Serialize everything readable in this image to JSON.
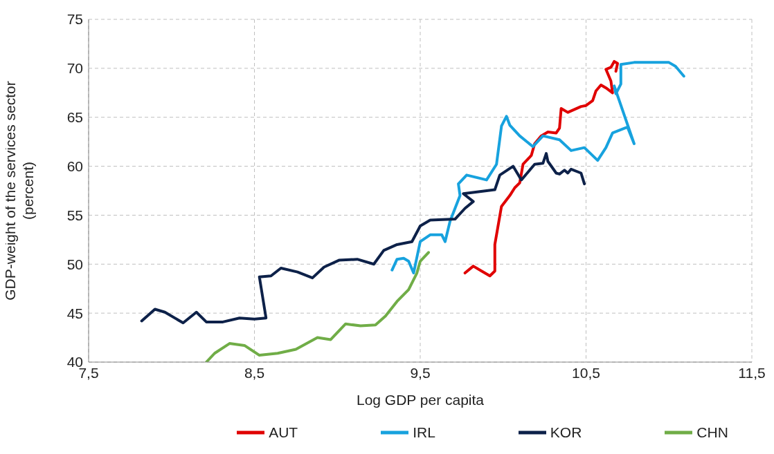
{
  "chart_data": {
    "type": "line",
    "xlabel": "Log GDP per capita",
    "ylabel": "GDP-weight of the services sector (percent)",
    "xlim": [
      7.5,
      11.5
    ],
    "xticks": [
      {
        "value": 7.5,
        "label": "7,5"
      },
      {
        "value": 8.5,
        "label": "8,5"
      },
      {
        "value": 9.5,
        "label": "9,5"
      },
      {
        "value": 10.5,
        "label": "10,5"
      },
      {
        "value": 11.5,
        "label": "11,5"
      }
    ],
    "ylim": [
      40,
      75
    ],
    "yticks": [
      40,
      45,
      50,
      55,
      60,
      65,
      70,
      75
    ],
    "grid": true,
    "legend": "bottom",
    "marker": "none",
    "line_style": "solid",
    "series": [
      {
        "name": "AUT",
        "color": "#e00000",
        "x": [
          9.77,
          9.82,
          9.87,
          9.92,
          9.95,
          9.95,
          9.99,
          10.04,
          10.07,
          10.1,
          10.12,
          10.17,
          10.19,
          10.23,
          10.27,
          10.32,
          10.34,
          10.35,
          10.39,
          10.47,
          10.5,
          10.54,
          10.56,
          10.59,
          10.62,
          10.66,
          10.65,
          10.62,
          10.65,
          10.67,
          10.69,
          10.68
        ],
        "values": [
          49.1,
          49.8,
          49.3,
          48.8,
          49.3,
          52.0,
          55.9,
          57.0,
          57.8,
          58.3,
          60.2,
          61.1,
          62.3,
          63.1,
          63.5,
          63.4,
          63.9,
          65.9,
          65.5,
          66.1,
          66.2,
          66.7,
          67.7,
          68.3,
          68.0,
          67.5,
          68.7,
          69.9,
          70.1,
          70.7,
          70.5,
          69.7
        ]
      },
      {
        "name": "IRL",
        "color": "#17a2de",
        "x": [
          9.33,
          9.36,
          9.4,
          9.43,
          9.46,
          9.5,
          9.56,
          9.63,
          9.65,
          9.68,
          9.71,
          9.74,
          9.73,
          9.78,
          9.9,
          9.96,
          9.99,
          10.02,
          10.04,
          10.1,
          10.18,
          10.24,
          10.34,
          10.41,
          10.49,
          10.57,
          10.62,
          10.66,
          10.75,
          10.79,
          10.67,
          10.68,
          10.71,
          10.71,
          10.79,
          11.0,
          11.04,
          11.09
        ],
        "values": [
          49.4,
          50.5,
          50.6,
          50.3,
          49.1,
          52.3,
          53.0,
          53.0,
          52.3,
          54.4,
          55.7,
          57.0,
          58.2,
          59.1,
          58.6,
          60.2,
          64.1,
          65.1,
          64.2,
          63.1,
          62.0,
          63.1,
          62.7,
          61.6,
          61.9,
          60.6,
          61.9,
          63.4,
          64.0,
          62.3,
          68.2,
          67.4,
          68.4,
          70.4,
          70.6,
          70.6,
          70.2,
          69.2
        ]
      },
      {
        "name": "KOR",
        "color": "#0d2149",
        "x": [
          7.82,
          7.9,
          7.96,
          8.07,
          8.15,
          8.21,
          8.31,
          8.41,
          8.5,
          8.57,
          8.53,
          8.6,
          8.66,
          8.76,
          8.85,
          8.92,
          9.01,
          9.12,
          9.22,
          9.28,
          9.36,
          9.45,
          9.5,
          9.56,
          9.71,
          9.77,
          9.82,
          9.76,
          9.95,
          9.98,
          10.06,
          10.11,
          10.19,
          10.24,
          10.26,
          10.27,
          10.32,
          10.34,
          10.37,
          10.39,
          10.41,
          10.47,
          10.49
        ],
        "values": [
          44.2,
          45.4,
          45.1,
          44.0,
          45.1,
          44.1,
          44.1,
          44.5,
          44.4,
          44.5,
          48.7,
          48.8,
          49.6,
          49.2,
          48.6,
          49.7,
          50.4,
          50.5,
          50.0,
          51.4,
          52.0,
          52.3,
          53.9,
          54.5,
          54.6,
          55.7,
          56.4,
          57.2,
          57.6,
          59.1,
          60.0,
          58.6,
          60.2,
          60.3,
          61.3,
          60.5,
          59.3,
          59.2,
          59.6,
          59.3,
          59.7,
          59.3,
          58.2
        ]
      },
      {
        "name": "CHN",
        "color": "#70ad47",
        "x": [
          8.21,
          8.26,
          8.35,
          8.44,
          8.53,
          8.64,
          8.75,
          8.88,
          8.96,
          9.05,
          9.14,
          9.23,
          9.29,
          9.36,
          9.43,
          9.48,
          9.5,
          9.55
        ],
        "values": [
          40.0,
          40.9,
          41.9,
          41.7,
          40.7,
          40.9,
          41.3,
          42.5,
          42.3,
          43.9,
          43.7,
          43.8,
          44.7,
          46.2,
          47.4,
          49.1,
          50.3,
          51.2
        ]
      }
    ]
  }
}
